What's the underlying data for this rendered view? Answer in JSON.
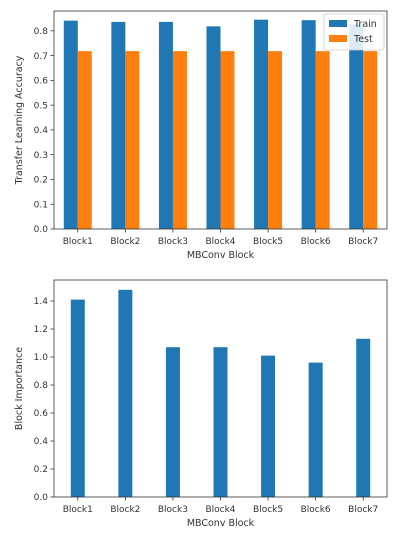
{
  "chart_data": [
    {
      "type": "bar",
      "categories": [
        "Block1",
        "Block2",
        "Block3",
        "Block4",
        "Block5",
        "Block6",
        "Block7"
      ],
      "series": [
        {
          "name": "Train",
          "values": [
            0.841,
            0.836,
            0.836,
            0.818,
            0.845,
            0.843,
            0.826
          ],
          "color": "#1f77b4"
        },
        {
          "name": "Test",
          "values": [
            0.718,
            0.718,
            0.718,
            0.718,
            0.718,
            0.718,
            0.718
          ],
          "color": "#ff7f0e"
        }
      ],
      "title": "",
      "xlabel": "MBConv Block",
      "ylabel": "Transfer Learning Accuracy",
      "ylim": [
        0,
        0.88
      ],
      "yticks": [
        0.0,
        0.1,
        0.2,
        0.3,
        0.4,
        0.5,
        0.6,
        0.7,
        0.8
      ],
      "ytick_labels": [
        "0.0",
        "0.1",
        "0.2",
        "0.3",
        "0.4",
        "0.5",
        "0.6",
        "0.7",
        "0.8"
      ],
      "legend": "top-right",
      "grid": false
    },
    {
      "type": "bar",
      "categories": [
        "Block1",
        "Block2",
        "Block3",
        "Block4",
        "Block5",
        "Block6",
        "Block7"
      ],
      "series": [
        {
          "values": [
            1.41,
            1.48,
            1.07,
            1.07,
            1.01,
            0.96,
            1.13
          ],
          "color": "#1f77b4"
        }
      ],
      "title": "",
      "xlabel": "MBConv Block",
      "ylabel": "Block Importance",
      "ylim": [
        0,
        1.55
      ],
      "yticks": [
        0.0,
        0.2,
        0.4,
        0.6,
        0.8,
        1.0,
        1.2,
        1.4
      ],
      "ytick_labels": [
        "0.0",
        "0.2",
        "0.4",
        "0.6",
        "0.8",
        "1.0",
        "1.2",
        "1.4"
      ],
      "legend": "none",
      "grid": false
    }
  ]
}
